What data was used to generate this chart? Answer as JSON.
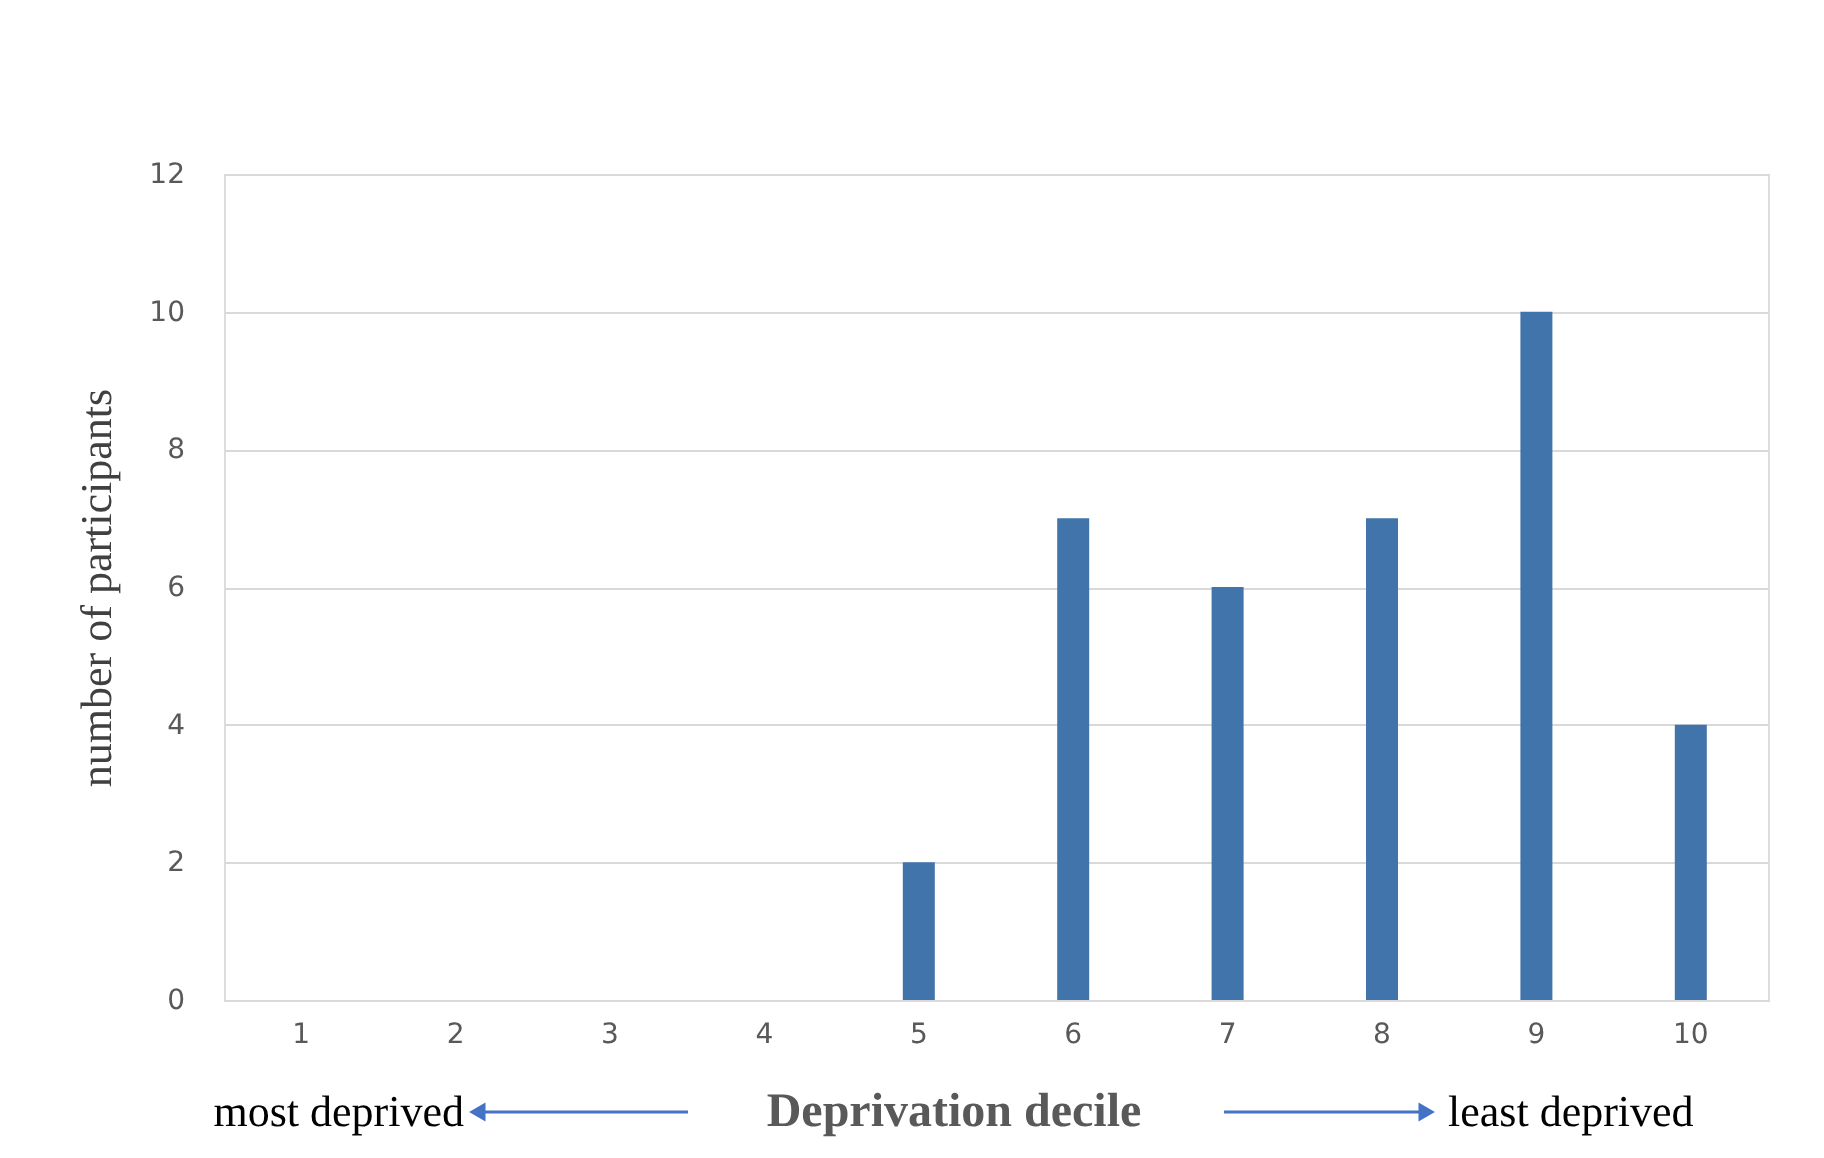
{
  "chart_data": {
    "type": "bar",
    "xlabel": "Deprivation decile",
    "ylabel": "number of participants",
    "categories": [
      "1",
      "2",
      "3",
      "4",
      "5",
      "6",
      "7",
      "8",
      "9",
      "10"
    ],
    "values": [
      0,
      0,
      0,
      0,
      2,
      7,
      6,
      7,
      10,
      4
    ],
    "color": "#4174aa",
    "ylim": [
      0,
      12
    ],
    "yticks": [
      0,
      2,
      4,
      6,
      8,
      10,
      12
    ],
    "grid": "y",
    "annotations": [
      "most deprived",
      "least deprived"
    ]
  }
}
